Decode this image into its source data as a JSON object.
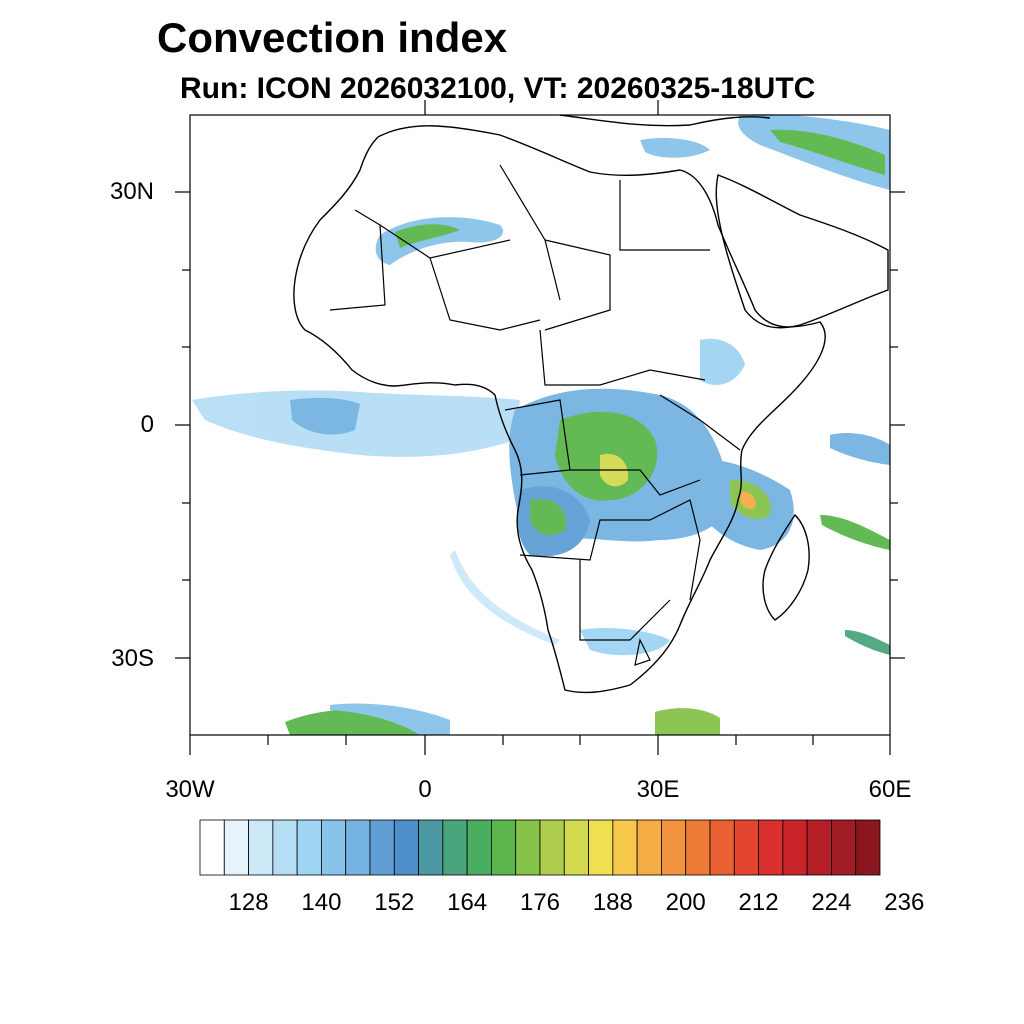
{
  "title": "Convection index",
  "subtitle": "Run: ICON 2026032100,  VT: 20260325-18UTC",
  "axes": {
    "lat_labels": [
      "30N",
      "0",
      "30S"
    ],
    "lon_labels": [
      "30W",
      "0",
      "30E",
      "60E"
    ]
  },
  "colorbar": {
    "labels": [
      "128",
      "140",
      "152",
      "164",
      "176",
      "188",
      "200",
      "212",
      "224",
      "236"
    ],
    "colors": [
      "#ffffff",
      "#e8f4fb",
      "#cce8f7",
      "#b5def5",
      "#9fd4f2",
      "#88c3ea",
      "#75b3e2",
      "#5f9fd5",
      "#4d8fc8",
      "#4b9aa3",
      "#4aa57c",
      "#4aae60",
      "#5bb64b",
      "#86c24a",
      "#aecd4d",
      "#d3da50",
      "#f0e04f",
      "#f6c94c",
      "#f6ad45",
      "#f29340",
      "#ee7a38",
      "#e96133",
      "#e2462f",
      "#d9302d",
      "#c8242a",
      "#b41f27",
      "#a01b23",
      "#8a171f"
    ]
  },
  "map": {
    "projection": "lat-lon",
    "lon_range": [
      -30,
      60
    ],
    "lat_range": [
      -40,
      40
    ],
    "features": [
      "coastlines",
      "country-borders",
      "convection-index-shading"
    ]
  }
}
